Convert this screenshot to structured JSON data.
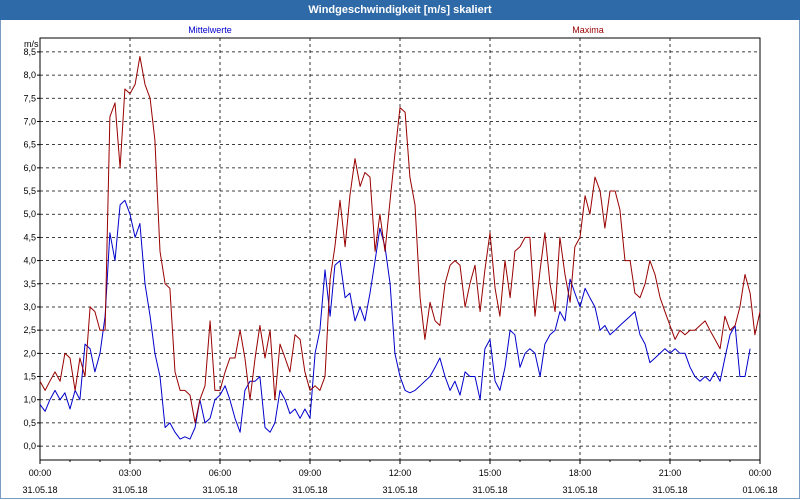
{
  "window": {
    "title": "Windgeschwindigkeit [m/s] skaliert"
  },
  "chart_data": {
    "type": "line",
    "title": "Windgeschwindigkeit [m/s] skaliert",
    "ylabel": "m/s",
    "ylim": [
      -0.3,
      8.8
    ],
    "xlim": [
      0,
      24
    ],
    "grid": true,
    "legend_placement": "top",
    "y_ticks": [
      "0,0",
      "0,5",
      "1,0",
      "1,5",
      "2,0",
      "2,5",
      "3,0",
      "3,5",
      "4,0",
      "4,5",
      "5,0",
      "5,5",
      "6,0",
      "6,5",
      "7,0",
      "7,5",
      "8,0",
      "8,5"
    ],
    "x_ticks": [
      {
        "time": "00:00",
        "date": "31.05.18"
      },
      {
        "time": "03:00",
        "date": "31.05.18"
      },
      {
        "time": "06:00",
        "date": "31.05.18"
      },
      {
        "time": "09:00",
        "date": "31.05.18"
      },
      {
        "time": "12:00",
        "date": "31.05.18"
      },
      {
        "time": "15:00",
        "date": "31.05.18"
      },
      {
        "time": "18:00",
        "date": "31.05.18"
      },
      {
        "time": "21:00",
        "date": "31.05.18"
      },
      {
        "time": "00:00",
        "date": "01.06.18"
      }
    ],
    "x_hours": [
      0,
      0.17,
      0.33,
      0.5,
      0.67,
      0.83,
      1,
      1.17,
      1.33,
      1.5,
      1.67,
      1.83,
      2,
      2.17,
      2.33,
      2.5,
      2.67,
      2.83,
      3,
      3.17,
      3.33,
      3.5,
      3.67,
      3.83,
      4,
      4.17,
      4.33,
      4.5,
      4.67,
      4.83,
      5,
      5.17,
      5.33,
      5.5,
      5.67,
      5.83,
      6,
      6.17,
      6.33,
      6.5,
      6.67,
      6.83,
      7,
      7.17,
      7.33,
      7.5,
      7.67,
      7.83,
      8,
      8.17,
      8.33,
      8.5,
      8.67,
      8.83,
      9,
      9.17,
      9.33,
      9.5,
      9.67,
      9.83,
      10,
      10.17,
      10.33,
      10.5,
      10.67,
      10.83,
      11,
      11.17,
      11.33,
      11.5,
      11.67,
      11.83,
      12,
      12.17,
      12.33,
      12.5,
      12.67,
      12.83,
      13,
      13.17,
      13.33,
      13.5,
      13.67,
      13.83,
      14,
      14.17,
      14.33,
      14.5,
      14.67,
      14.83,
      15,
      15.17,
      15.33,
      15.5,
      15.67,
      15.83,
      16,
      16.17,
      16.33,
      16.5,
      16.67,
      16.83,
      17,
      17.17,
      17.33,
      17.5,
      17.67,
      17.83,
      18,
      18.17,
      18.33,
      18.5,
      18.67,
      18.83,
      19,
      19.17,
      19.33,
      19.5,
      19.67,
      19.83,
      20,
      20.17,
      20.33,
      20.5,
      20.67,
      20.83,
      21,
      21.17,
      21.33,
      21.5,
      21.67,
      21.83,
      22,
      22.17,
      22.33,
      22.5,
      22.67,
      22.83,
      23,
      23.17,
      23.33,
      23.5,
      23.67,
      23.83,
      24
    ],
    "series": [
      {
        "name": "Mittelwerte",
        "color": "#0000cc",
        "values": [
          0.9,
          0.75,
          1.0,
          1.2,
          1.0,
          1.15,
          0.8,
          1.2,
          1.0,
          2.2,
          2.1,
          1.6,
          2.0,
          2.8,
          4.6,
          4.0,
          5.2,
          5.3,
          5.0,
          4.5,
          4.8,
          3.5,
          2.8,
          2.0,
          1.5,
          0.4,
          0.5,
          0.3,
          0.15,
          0.2,
          0.15,
          0.4,
          1.0,
          0.5,
          0.6,
          1.0,
          1.1,
          1.3,
          1.0,
          0.6,
          0.3,
          1.2,
          1.4,
          1.4,
          1.5,
          0.4,
          0.3,
          0.5,
          1.2,
          1.0,
          0.7,
          0.8,
          0.6,
          0.8,
          0.6,
          2.0,
          2.5,
          3.8,
          2.8,
          3.9,
          4.0,
          3.2,
          3.3,
          2.7,
          3.0,
          2.7,
          3.3,
          4.0,
          4.7,
          4.3,
          3.5,
          2.0,
          1.5,
          1.2,
          1.15,
          1.2,
          1.3,
          1.4,
          1.5,
          1.7,
          1.9,
          1.5,
          1.2,
          1.4,
          1.1,
          1.6,
          1.5,
          1.5,
          1.0,
          2.1,
          2.3,
          1.4,
          1.2,
          1.7,
          2.5,
          2.4,
          1.7,
          2.0,
          2.1,
          2.0,
          1.5,
          2.2,
          2.4,
          2.5,
          2.9,
          2.7,
          3.6,
          3.3,
          3.0,
          3.4,
          3.2,
          3.0,
          2.5,
          2.6,
          2.4,
          2.5,
          2.6,
          2.7,
          2.8,
          2.9,
          2.4,
          2.2,
          1.8,
          1.9,
          2.0,
          2.1,
          2.0,
          2.1,
          2.0,
          2.0,
          1.7,
          1.5,
          1.4,
          1.5,
          1.4,
          1.6,
          1.4,
          1.9,
          2.4,
          2.6,
          1.5,
          1.5,
          2.1
        ]
      },
      {
        "name": "Maxima",
        "color": "#990000",
        "values": [
          1.4,
          1.2,
          1.4,
          1.6,
          1.4,
          2.0,
          1.9,
          1.2,
          1.9,
          1.5,
          3.0,
          2.9,
          2.5,
          2.5,
          7.1,
          7.4,
          6.0,
          7.7,
          7.6,
          7.8,
          8.4,
          7.8,
          7.5,
          6.6,
          4.2,
          3.5,
          3.4,
          1.6,
          1.2,
          1.2,
          1.1,
          0.5,
          1.0,
          1.3,
          2.7,
          1.2,
          1.2,
          1.6,
          1.9,
          1.9,
          2.5,
          1.9,
          1.0,
          1.9,
          2.6,
          1.9,
          2.5,
          1.0,
          2.2,
          1.9,
          1.6,
          2.4,
          2.3,
          1.6,
          1.2,
          1.3,
          1.2,
          1.5,
          3.6,
          4.3,
          5.3,
          4.3,
          5.4,
          6.2,
          5.6,
          5.9,
          5.8,
          4.2,
          5.0,
          4.2,
          5.3,
          6.3,
          7.3,
          7.2,
          5.8,
          5.2,
          3.2,
          2.3,
          3.1,
          2.7,
          2.6,
          3.5,
          3.9,
          4.0,
          3.9,
          3.0,
          3.5,
          3.9,
          2.9,
          3.8,
          4.6,
          3.4,
          2.8,
          4.0,
          3.2,
          4.2,
          4.3,
          4.5,
          4.5,
          2.8,
          3.8,
          4.6,
          3.5,
          2.9,
          4.5,
          3.7,
          3.1,
          4.3,
          4.5,
          5.4,
          5.0,
          5.8,
          5.5,
          4.7,
          5.5,
          5.5,
          5.1,
          4.0,
          4.0,
          3.3,
          3.2,
          3.5,
          4.0,
          3.7,
          3.2,
          2.9,
          2.6,
          2.3,
          2.5,
          2.4,
          2.5,
          2.5,
          2.6,
          2.7,
          2.5,
          2.3,
          2.1,
          2.8,
          2.5,
          2.6,
          3.0,
          3.7,
          3.3,
          2.4,
          2.9
        ]
      }
    ]
  }
}
